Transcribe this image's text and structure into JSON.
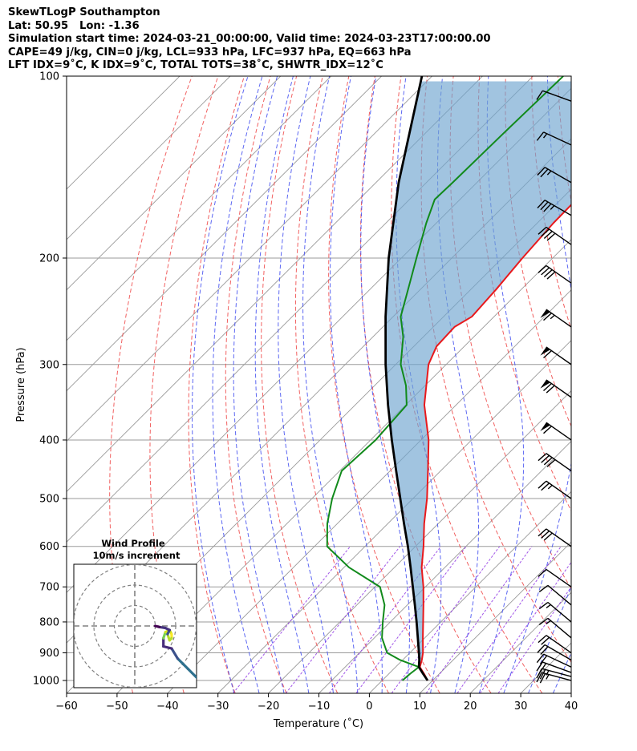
{
  "header": {
    "line1": "SkewTLogP Southampton",
    "line2": "Lat: 50.95   Lon: -1.36",
    "line3": "Simulation start time: 2024-03-21_00:00:00, Valid time: 2024-03-23T17:00:00.00",
    "line4": "CAPE=49 j/kg, CIN=0 j/kg, LCL=933 hPa, LFC=937 hPa, EQ=663 hPa",
    "line5": "LFT IDX=9˚C, K IDX=9˚C, TOTAL TOTS=38˚C, SHWTR_IDX=12˚C"
  },
  "chart_data": {
    "type": "skewt-logp",
    "xlabel": "Temperature (˚C)",
    "ylabel": "Pressure (hPa)",
    "xlim": [
      -60,
      40
    ],
    "ylim": [
      1050,
      100
    ],
    "y_scale": "log",
    "x_ticks": [
      -60,
      -50,
      -40,
      -30,
      -20,
      -10,
      0,
      10,
      20,
      30,
      40
    ],
    "x_tick_labels": [
      "−60",
      "−50",
      "−40",
      "−30",
      "−20",
      "−10",
      "0",
      "10",
      "20",
      "30",
      "40"
    ],
    "y_ticks": [
      1000,
      900,
      800,
      700,
      600,
      500,
      400,
      300,
      200,
      100
    ],
    "grid": true,
    "skew_degrees": 45,
    "colors": {
      "temperature": "#e8191c",
      "dewpoint": "#118a1b",
      "parcel": "#000000",
      "cape_fill": "#6fa4cf",
      "dry_adiabats": "#ef4545",
      "moist_adiabats": "#3f4cf0",
      "mixing_ratio": "#8a2be2",
      "isotherms": "#9a9a9a"
    },
    "temperature_profile": [
      {
        "p": 1000,
        "t": 9.0
      },
      {
        "p": 975,
        "t": 7.0
      },
      {
        "p": 950,
        "t": 4.8
      },
      {
        "p": 925,
        "t": 3.8
      },
      {
        "p": 900,
        "t": 2.6
      },
      {
        "p": 850,
        "t": -0.4
      },
      {
        "p": 800,
        "t": -3.5
      },
      {
        "p": 750,
        "t": -6.8
      },
      {
        "p": 700,
        "t": -10.4
      },
      {
        "p": 650,
        "t": -14.6
      },
      {
        "p": 600,
        "t": -18.4
      },
      {
        "p": 550,
        "t": -22.8
      },
      {
        "p": 500,
        "t": -27.2
      },
      {
        "p": 450,
        "t": -32.5
      },
      {
        "p": 400,
        "t": -38.5
      },
      {
        "p": 350,
        "t": -46.3
      },
      {
        "p": 300,
        "t": -53.5
      },
      {
        "p": 280,
        "t": -55.5
      },
      {
        "p": 260,
        "t": -55.8
      },
      {
        "p": 250,
        "t": -54.4
      },
      {
        "p": 225,
        "t": -55.0
      },
      {
        "p": 200,
        "t": -56.0
      },
      {
        "p": 175,
        "t": -56.8
      },
      {
        "p": 150,
        "t": -57.0
      },
      {
        "p": 125,
        "t": -57.5
      },
      {
        "p": 100,
        "t": -58.8
      }
    ],
    "dewpoint_profile": [
      {
        "p": 1000,
        "t": 4.0
      },
      {
        "p": 975,
        "t": 4.2
      },
      {
        "p": 950,
        "t": 4.6
      },
      {
        "p": 925,
        "t": -0.5
      },
      {
        "p": 900,
        "t": -4.5
      },
      {
        "p": 850,
        "t": -8.5
      },
      {
        "p": 800,
        "t": -11.5
      },
      {
        "p": 750,
        "t": -14.5
      },
      {
        "p": 700,
        "t": -19.0
      },
      {
        "p": 650,
        "t": -29.0
      },
      {
        "p": 600,
        "t": -37.5
      },
      {
        "p": 550,
        "t": -42.0
      },
      {
        "p": 500,
        "t": -46.0
      },
      {
        "p": 450,
        "t": -49.6
      },
      {
        "p": 400,
        "t": -49.0
      },
      {
        "p": 350,
        "t": -49.8
      },
      {
        "p": 325,
        "t": -53.8
      },
      {
        "p": 300,
        "t": -59.0
      },
      {
        "p": 270,
        "t": -64.0
      },
      {
        "p": 250,
        "t": -68.5
      },
      {
        "p": 225,
        "t": -72.5
      },
      {
        "p": 200,
        "t": -77.0
      },
      {
        "p": 175,
        "t": -82.0
      },
      {
        "p": 160,
        "t": -85.0
      },
      {
        "p": 150,
        "t": -84.8
      },
      {
        "p": 125,
        "t": -84.5
      },
      {
        "p": 100,
        "t": -84.0
      }
    ],
    "parcel_profile": [
      {
        "p": 1000,
        "t": 9.0
      },
      {
        "p": 975,
        "t": 6.8
      },
      {
        "p": 950,
        "t": 4.6
      },
      {
        "p": 925,
        "t": 3.3
      },
      {
        "p": 900,
        "t": 1.8
      },
      {
        "p": 850,
        "t": -1.4
      },
      {
        "p": 800,
        "t": -4.8
      },
      {
        "p": 750,
        "t": -8.5
      },
      {
        "p": 700,
        "t": -12.5
      },
      {
        "p": 650,
        "t": -16.8
      },
      {
        "p": 600,
        "t": -21.5
      },
      {
        "p": 550,
        "t": -26.8
      },
      {
        "p": 500,
        "t": -32.5
      },
      {
        "p": 450,
        "t": -38.8
      },
      {
        "p": 400,
        "t": -45.8
      },
      {
        "p": 350,
        "t": -53.5
      },
      {
        "p": 300,
        "t": -62.0
      },
      {
        "p": 250,
        "t": -71.5
      },
      {
        "p": 200,
        "t": -82.5
      },
      {
        "p": 150,
        "t": -95.5
      },
      {
        "p": 100,
        "t": -112.0
      }
    ],
    "wind_barbs": [
      {
        "p": 1000,
        "dir": 285,
        "kt": 25
      },
      {
        "p": 985,
        "dir": 285,
        "kt": 25
      },
      {
        "p": 970,
        "dir": 290,
        "kt": 20
      },
      {
        "p": 950,
        "dir": 295,
        "kt": 20
      },
      {
        "p": 925,
        "dir": 300,
        "kt": 20
      },
      {
        "p": 900,
        "dir": 305,
        "kt": 20
      },
      {
        "p": 850,
        "dir": 310,
        "kt": 15
      },
      {
        "p": 800,
        "dir": 310,
        "kt": 15
      },
      {
        "p": 750,
        "dir": 310,
        "kt": 10
      },
      {
        "p": 700,
        "dir": 305,
        "kt": 10
      },
      {
        "p": 600,
        "dir": 305,
        "kt": 30
      },
      {
        "p": 500,
        "dir": 305,
        "kt": 25
      },
      {
        "p": 450,
        "dir": 305,
        "kt": 40
      },
      {
        "p": 400,
        "dir": 305,
        "kt": 60
      },
      {
        "p": 340,
        "dir": 305,
        "kt": 70
      },
      {
        "p": 300,
        "dir": 305,
        "kt": 60
      },
      {
        "p": 260,
        "dir": 305,
        "kt": 65
      },
      {
        "p": 220,
        "dir": 305,
        "kt": 40
      },
      {
        "p": 190,
        "dir": 305,
        "kt": 40
      },
      {
        "p": 170,
        "dir": 300,
        "kt": 35
      },
      {
        "p": 150,
        "dir": 300,
        "kt": 25
      },
      {
        "p": 130,
        "dir": 295,
        "kt": 15
      },
      {
        "p": 110,
        "dir": 290,
        "kt": 10
      }
    ],
    "hodograph": {
      "title": "Wind Profile",
      "subtitle": "10m/s increment",
      "ring_increment_ms": 10,
      "points": [
        {
          "u": 31,
          "v": -26
        },
        {
          "u": 26,
          "v": -21
        },
        {
          "u": 21,
          "v": -16
        },
        {
          "u": 18,
          "v": -11
        },
        {
          "u": 14,
          "v": -10
        },
        {
          "u": 14,
          "v": -6
        },
        {
          "u": 15,
          "v": -3
        },
        {
          "u": 17,
          "v": -2
        },
        {
          "u": 18,
          "v": -4
        },
        {
          "u": 18,
          "v": -6
        },
        {
          "u": 17,
          "v": -7
        },
        {
          "u": 16,
          "v": -4
        },
        {
          "u": 17,
          "v": -2
        },
        {
          "u": 15,
          "v": -1
        },
        {
          "u": 12,
          "v": -0.5
        },
        {
          "u": 10,
          "v": 0
        }
      ]
    }
  }
}
